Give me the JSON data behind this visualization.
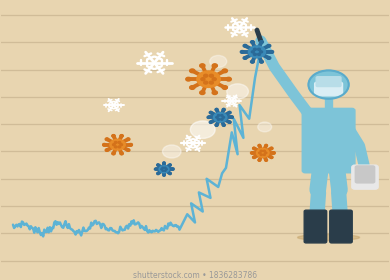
{
  "background_color": "#e8d5b0",
  "line_color": "#5db3d5",
  "grid_line_color": "#d0bc98",
  "suit_color": "#7dc4d8",
  "suit_dark": "#5aabcb",
  "boot_color": "#2a3d4a",
  "skin_color": "#f0c8a0",
  "mask_color": "#e8e8e8",
  "marker_color": "#1a1a2e",
  "virus_orange": "#e88c28",
  "virus_orange_center": "#d4721a",
  "virus_blue": "#3a8ab8",
  "virus_blue_center": "#2a6a98",
  "snowflake_color": "#ffffff",
  "glow_color": "#ffffff",
  "figure_width": 3.9,
  "figure_height": 2.8,
  "dpi": 100,
  "watermark": "shutterstock.com • 1836283786",
  "n_grid_lines": 9
}
